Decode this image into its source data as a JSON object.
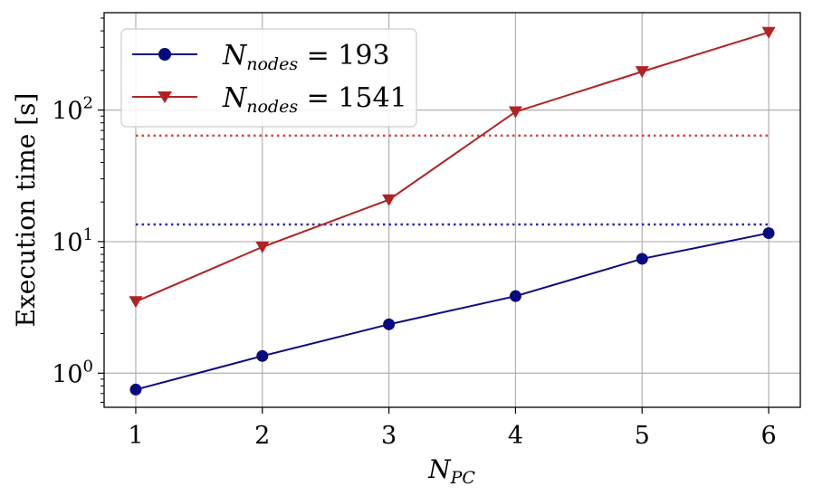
{
  "chart_data": {
    "type": "line",
    "yscale": "log",
    "x": [
      1,
      2,
      3,
      4,
      5,
      6
    ],
    "xlim": [
      0.75,
      6.25
    ],
    "ylim": [
      0.55,
      550
    ],
    "xticks": [
      "1",
      "2",
      "3",
      "4",
      "5",
      "6"
    ],
    "yticks": [
      {
        "value": 1,
        "base": "10",
        "exp": "0"
      },
      {
        "value": 10,
        "base": "10",
        "exp": "1"
      },
      {
        "value": 100,
        "base": "10",
        "exp": "2"
      }
    ],
    "xlabel": {
      "main": "N",
      "sub": "PC"
    },
    "ylabel": "Execution time [s]",
    "grid": true,
    "legend_position": "top-left",
    "series": [
      {
        "name": "N_nodes = 193",
        "legend_main": "N",
        "legend_sub": "nodes",
        "legend_rest": " = 193",
        "values": [
          0.75,
          1.35,
          2.35,
          3.85,
          7.4,
          11.6
        ],
        "color": "#0a0a80",
        "marker": "circle",
        "reference": 13.5,
        "reference_color": "#2a2ab0"
      },
      {
        "name": "N_nodes = 1541",
        "legend_main": "N",
        "legend_sub": "nodes",
        "legend_rest": " = 1541",
        "values": [
          3.5,
          9.1,
          20.8,
          97,
          196,
          390
        ],
        "color": "#b22222",
        "marker": "triangle-down",
        "reference": 64,
        "reference_color": "#cc4433"
      }
    ]
  }
}
